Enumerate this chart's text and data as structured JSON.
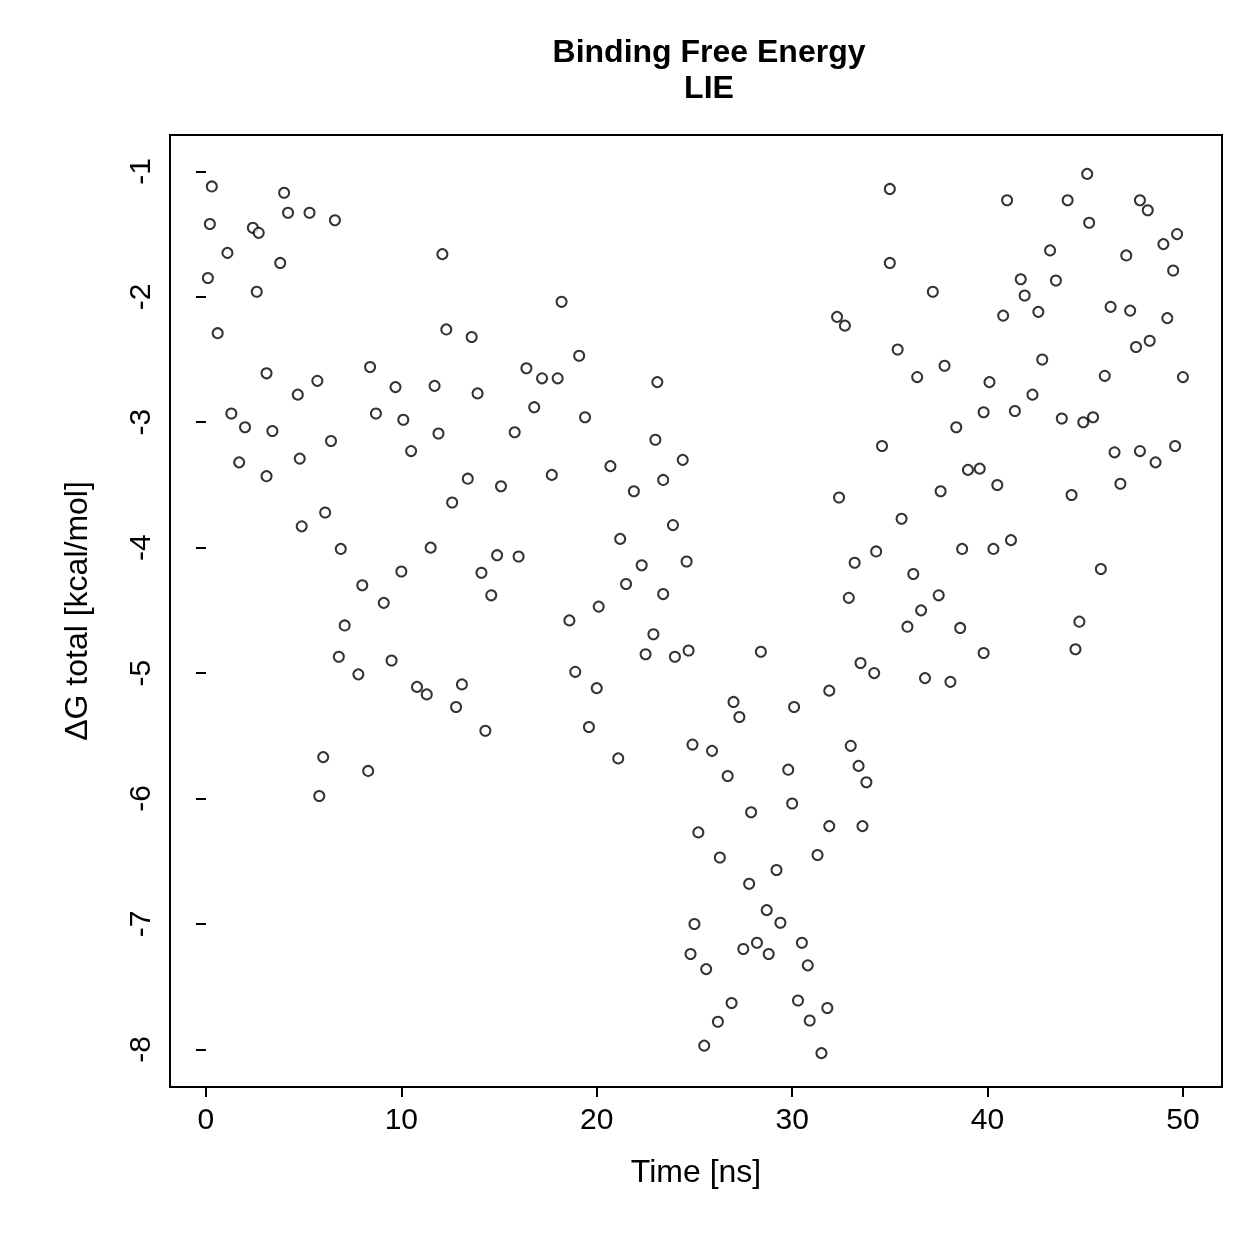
{
  "chart_data": {
    "type": "scatter",
    "title": "Binding Free Energy",
    "subtitle": "LIE",
    "xlabel": "Time [ns]",
    "ylabel": "ΔG total [kcal/mol]",
    "xlim": [
      -1.84,
      52.0
    ],
    "ylim": [
      -8.3,
      -0.71
    ],
    "xticks": [
      0,
      10,
      20,
      30,
      40,
      50
    ],
    "yticks": [
      -8,
      -7,
      -6,
      -5,
      -4,
      -3,
      -2,
      -1
    ],
    "grid": false,
    "marker": "circle",
    "series": [
      {
        "color": "#000000",
        "x": [
          0.3,
          0.2,
          0.1,
          0.6,
          1.1,
          1.3,
          1.7,
          2.0,
          2.4,
          2.7,
          2.6,
          3.1,
          3.1,
          3.4,
          3.8,
          4.0,
          4.2,
          4.7,
          4.8,
          4.9,
          5.3,
          5.7,
          5.8,
          6.0,
          6.1,
          6.4,
          6.6,
          6.8,
          6.9,
          7.1,
          7.8,
          8.0,
          8.3,
          8.4,
          8.7,
          9.1,
          9.5,
          9.7,
          10.0,
          10.1,
          10.5,
          10.8,
          11.3,
          11.5,
          11.7,
          11.9,
          12.1,
          12.3,
          12.6,
          12.8,
          13.1,
          13.4,
          13.6,
          13.9,
          14.1,
          14.3,
          14.6,
          14.9,
          15.1,
          15.8,
          16.0,
          16.4,
          16.8,
          17.2,
          17.7,
          18.0,
          18.2,
          18.6,
          18.9,
          19.1,
          19.4,
          19.6,
          20.0,
          20.1,
          20.7,
          21.1,
          21.2,
          21.5,
          21.9,
          22.3,
          22.5,
          22.9,
          23.0,
          23.1,
          23.4,
          23.4,
          23.9,
          24.0,
          24.4,
          24.6,
          24.7,
          24.9,
          24.8,
          25.0,
          25.2,
          25.5,
          25.6,
          25.9,
          26.2,
          26.3,
          26.7,
          26.9,
          27.0,
          27.3,
          27.5,
          27.8,
          27.9,
          28.2,
          28.4,
          28.7,
          28.8,
          29.2,
          29.4,
          29.8,
          30.0,
          30.3,
          30.1,
          30.5,
          30.8,
          30.9,
          31.3,
          31.5,
          31.8,
          31.9,
          31.9,
          32.3,
          32.4,
          32.7,
          32.9,
          33.0,
          33.2,
          33.4,
          33.5,
          33.6,
          33.8,
          34.2,
          34.3,
          34.6,
          35.0,
          35.0,
          35.4,
          35.6,
          35.9,
          36.2,
          36.4,
          36.6,
          36.8,
          37.2,
          37.5,
          37.6,
          37.8,
          38.1,
          38.4,
          38.6,
          38.7,
          39.0,
          39.6,
          39.8,
          39.8,
          40.1,
          40.3,
          40.5,
          40.8,
          41.0,
          41.2,
          41.4,
          41.7,
          41.9,
          42.3,
          42.6,
          42.8,
          43.2,
          43.5,
          43.8,
          44.1,
          44.3,
          44.5,
          44.7,
          44.9,
          45.1,
          45.2,
          45.4,
          45.8,
          46.0,
          46.3,
          46.5,
          46.8,
          47.1,
          47.3,
          47.6,
          47.8,
          47.8,
          48.2,
          48.3,
          48.6,
          49.0,
          49.2,
          49.5,
          49.7,
          49.6,
          50.0
        ],
        "values": [
          -1.12,
          -1.42,
          -1.85,
          -2.29,
          -1.65,
          -2.93,
          -3.32,
          -3.04,
          -1.45,
          -1.49,
          -1.96,
          -2.61,
          -3.43,
          -3.07,
          -1.73,
          -1.17,
          -1.33,
          -2.78,
          -3.29,
          -3.83,
          -1.33,
          -2.67,
          -5.98,
          -5.67,
          -3.72,
          -3.15,
          -1.39,
          -4.87,
          -4.01,
          -4.62,
          -5.01,
          -4.3,
          -5.78,
          -2.56,
          -2.93,
          -4.44,
          -4.9,
          -2.72,
          -4.19,
          -2.98,
          -3.23,
          -5.11,
          -5.17,
          -4.0,
          -2.71,
          -3.09,
          -1.66,
          -2.26,
          -3.64,
          -5.27,
          -5.09,
          -3.45,
          -2.32,
          -2.77,
          -4.2,
          -5.46,
          -4.38,
          -4.06,
          -3.51,
          -3.08,
          -4.07,
          -2.57,
          -2.88,
          -2.65,
          -3.42,
          -2.65,
          -2.04,
          -4.58,
          -4.99,
          -2.47,
          -2.96,
          -5.43,
          -5.12,
          -4.47,
          -3.35,
          -5.68,
          -3.93,
          -4.29,
          -3.55,
          -4.14,
          -4.85,
          -4.69,
          -3.14,
          -2.68,
          -3.46,
          -4.37,
          -3.82,
          -4.87,
          -3.3,
          -4.11,
          -4.82,
          -5.57,
          -7.24,
          -7.0,
          -6.27,
          -7.97,
          -7.36,
          -5.62,
          -7.78,
          -6.47,
          -5.82,
          -7.63,
          -5.23,
          -5.35,
          -7.2,
          -6.68,
          -6.11,
          -7.15,
          -4.83,
          -6.89,
          -7.24,
          -6.57,
          -6.99,
          -5.77,
          -6.04,
          -7.61,
          -5.27,
          -7.15,
          -7.33,
          -7.77,
          -6.45,
          -8.03,
          -7.67,
          -6.22,
          -5.14,
          -2.16,
          -3.6,
          -2.23,
          -4.4,
          -5.58,
          -4.12,
          -5.74,
          -4.92,
          -6.22,
          -5.87,
          -5.0,
          -4.03,
          -3.19,
          -1.14,
          -1.73,
          -2.42,
          -3.77,
          -4.63,
          -4.21,
          -2.64,
          -4.5,
          -5.04,
          -1.96,
          -4.38,
          -3.55,
          -2.55,
          -5.07,
          -3.04,
          -4.64,
          -4.01,
          -3.38,
          -3.37,
          -2.92,
          -4.84,
          -2.68,
          -4.01,
          -3.5,
          -2.15,
          -1.23,
          -3.94,
          -2.91,
          -1.86,
          -1.99,
          -2.78,
          -2.12,
          -2.5,
          -1.63,
          -1.87,
          -2.97,
          -1.23,
          -3.58,
          -4.81,
          -4.59,
          -3.0,
          -1.02,
          -1.41,
          -2.96,
          -4.17,
          -2.63,
          -2.08,
          -3.24,
          -3.49,
          -1.67,
          -2.11,
          -2.4,
          -1.23,
          -3.23,
          -1.31,
          -2.35,
          -3.32,
          -1.58,
          -2.17,
          -1.79,
          -1.5,
          -3.19,
          -2.64
        ]
      }
    ]
  }
}
